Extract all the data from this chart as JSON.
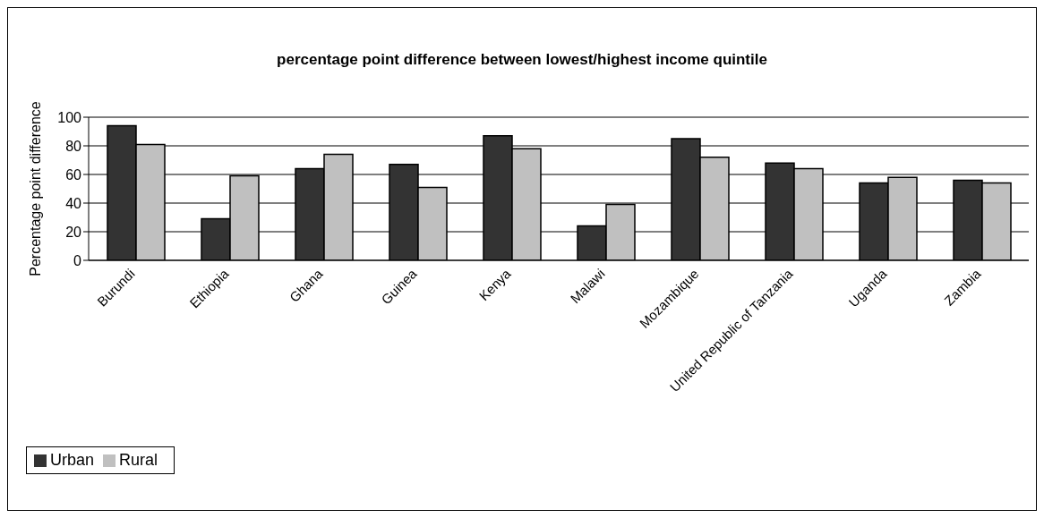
{
  "chart_data": {
    "type": "bar",
    "title": "percentage point difference between lowest/highest income quintile",
    "ylabel": "Percentage point difference",
    "categories": [
      "Burundi",
      "Ethiopia",
      "Ghana",
      "Guinea",
      "Kenya",
      "Malawi",
      "Mozambique",
      "United Republic of Tanzania",
      "Uganda",
      "Zambia"
    ],
    "series": [
      {
        "name": "Urban",
        "color": "#333333",
        "values": [
          94,
          29,
          64,
          67,
          87,
          24,
          85,
          68,
          54,
          56
        ]
      },
      {
        "name": "Rural",
        "color": "#c0c0c0",
        "values": [
          81,
          59,
          74,
          51,
          78,
          39,
          72,
          64,
          58,
          54
        ]
      }
    ],
    "ylim": [
      0,
      100
    ],
    "yticks": [
      0,
      20,
      40,
      60,
      80,
      100
    ],
    "grid": "y",
    "legend": "bottom left"
  }
}
